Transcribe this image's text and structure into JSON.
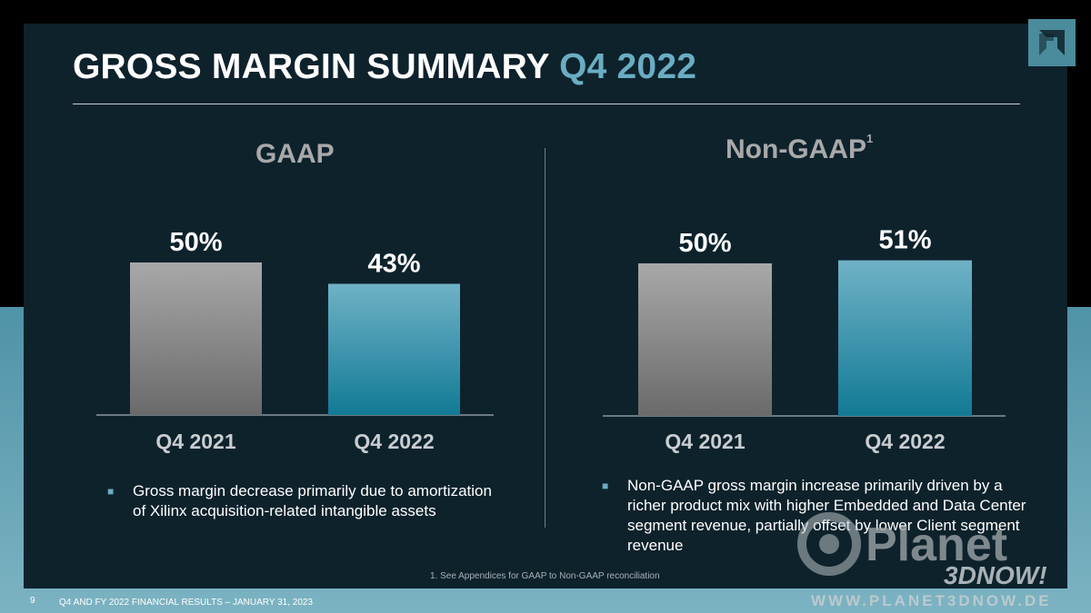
{
  "slide": {
    "title_main": "GROSS MARGIN SUMMARY",
    "title_accent": "Q4 2022",
    "page_number": "9",
    "footer": "Q4 AND FY 2022 FINANCIAL RESULTS – JANUARY 31, 2023",
    "footnote": "1. See Appendices for GAAP to Non-GAAP reconciliation"
  },
  "colors": {
    "title_accent": "#6aadc3",
    "bar_prior": "#8f8f8f",
    "bar_current": "#3f9bb2",
    "panel_bg": "#0e222c"
  },
  "chart_data": [
    {
      "type": "bar",
      "title": "GAAP",
      "title_superscript": "",
      "categories": [
        "Q4 2021",
        "Q4 2022"
      ],
      "values": [
        50,
        43
      ],
      "value_labels": [
        "50%",
        "43%"
      ],
      "unit": "%",
      "grid": false,
      "legend": "none"
    },
    {
      "type": "bar",
      "title": "Non-GAAP",
      "title_superscript": "1",
      "categories": [
        "Q4 2021",
        "Q4 2022"
      ],
      "values": [
        50,
        51
      ],
      "value_labels": [
        "50%",
        "51%"
      ],
      "unit": "%",
      "grid": false,
      "legend": "none"
    }
  ],
  "bullets": {
    "gaap": "Gross margin decrease primarily due to amortization of Xilinx acquisition-related intangible assets",
    "non_gaap": "Non-GAAP gross margin increase primarily driven by a richer product mix with higher Embedded and Data Center segment revenue, partially offset by lower Client segment revenue"
  },
  "watermark": {
    "brand_line1": "Planet",
    "brand_line2": "3DNOW!",
    "url": "WWW.PLANET3DNOW.DE",
    "icon": "planet3dnow-logo-icon"
  },
  "logo": {
    "icon": "amd-logo-icon"
  }
}
